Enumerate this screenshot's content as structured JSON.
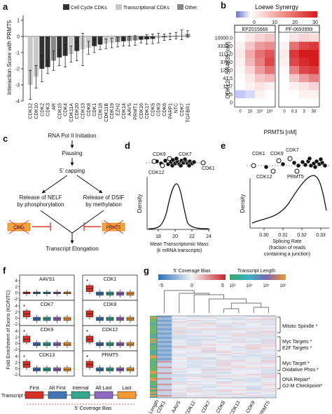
{
  "panel_labels": {
    "a": "a",
    "b": "b",
    "c": "c",
    "d": "d",
    "e": "e",
    "f": "f",
    "g": "g"
  },
  "panel_a": {
    "legend": [
      {
        "label": "Cell Cycle CDKs",
        "color": "#333333"
      },
      {
        "label": "Transcriptional CDKs",
        "color": "#c8c8c8"
      },
      {
        "label": "Other",
        "color": "#888888"
      }
    ],
    "ylabel": "Interaction Score with PRMT5",
    "yticks": [
      "1",
      "0",
      "-1",
      "-2",
      "-3",
      "-4"
    ]
  },
  "panel_b": {
    "title": "Loewe Synergy",
    "scale_ticks": [
      "0",
      "10",
      "20",
      "30"
    ],
    "ylabel": "CDK12i - SR4835 [nM]",
    "xlabel": "PRMT5i [nM]",
    "heatmaps": [
      {
        "title": "EPZ015666",
        "xticks": [
          "0",
          "10",
          "10²",
          "10³"
        ]
      },
      {
        "title": "PF-0693999",
        "xticks": [
          "0",
          "0.3",
          "3",
          "30"
        ]
      }
    ],
    "yticks": [
      "10000.0",
      "3333.0",
      "1111.0",
      "370.0",
      "123.0",
      "41.5",
      "13.7",
      "4.5",
      "0"
    ]
  },
  "panel_c": {
    "nodes": {
      "rnapol": "RNA Pol II Initiation",
      "pausing": "Pausing",
      "capping": "5' capping",
      "nelf_1": "Release of NELF",
      "nelf_2": "by phosphorylation",
      "dsif_1": "Release of DSIF",
      "dsif_2": "by methylation",
      "elong": "Transcript Elongation"
    },
    "badges": {
      "cdks": "CDKs",
      "prmt5": "PRMT5"
    }
  },
  "panel_d": {
    "labels": {
      "cdk9": "CDK9",
      "cdk7": "CDK7",
      "cdk12": "CDK12",
      "cdk1": "CDK1"
    },
    "ylabel": "Density",
    "xlabel_1": "Mean Transcriptomic Mass",
    "xlabel_2": "(k mRNA transcripts)",
    "xticks": [
      "18",
      "20",
      "22",
      "24"
    ]
  },
  "panel_e": {
    "labels": {
      "cdk1": "CDK1",
      "cdk9": "CDK9",
      "cdk7": "CDK7",
      "cdk12": "CDK12",
      "prmt5": "PRMT5"
    },
    "ylabel": "Density",
    "xlabel_1": "Splicing Rate",
    "xlabel_2": "(fraction of reads",
    "xlabel_3": "containing a junction)",
    "xticks": [
      "0.30",
      "0.31",
      "0.32",
      "0.33"
    ]
  },
  "panel_f": {
    "ylabel": "Fold Enrichment of Exons (KO/NTC)",
    "yticks": [
      "4",
      "2",
      "0",
      "-2"
    ],
    "star": "*",
    "genes": [
      "AAVS1",
      "CDK1",
      "CDK7",
      "CDK8",
      "CDK9",
      "CDK12",
      "CDK13",
      "PRMT5"
    ],
    "box_colors": [
      "#d73027",
      "#4575b4",
      "#35a78e",
      "#8e6bbf",
      "#f39a33"
    ],
    "transcript_label": "Transcript",
    "exon_labels": [
      "First",
      "Alt First",
      "Internal",
      "Alt Last",
      "Last"
    ],
    "bias_label": "5' Coverage Bias"
  },
  "panel_g": {
    "bias_title": "5' Coverage Bias",
    "bias_ticks": [
      "-5",
      "0",
      "5"
    ],
    "length_title": "Transcript Length",
    "length_ticks": [
      "10³",
      "10⁴",
      "10⁵",
      "10⁶"
    ],
    "length_label": "Length",
    "columns": [
      "CDK1",
      "AAVS",
      "CDK12",
      "CDK7",
      "CDK8",
      "CDK13",
      "CDK9",
      "PRMT5"
    ],
    "annotations": [
      {
        "text": "Mitotic Spindle *"
      },
      {
        "text": "Myc Targets *"
      },
      {
        "text": "E2F Targets *"
      },
      {
        "text": "Myc Target *"
      },
      {
        "text": "Oxidative Phos.*"
      },
      {
        "text": "DNA Repair*"
      },
      {
        "text": "G2-M Checkpoint*"
      }
    ]
  },
  "chart_data": [
    {
      "type": "bar",
      "panel": "a",
      "ylabel": "Interaction Score with PRMT5",
      "ylim": [
        -4,
        1.3
      ],
      "categories": [
        "CDK12",
        "CDK10",
        "CDK2",
        "CDK3",
        "AR",
        "CDK15",
        "CDK4",
        "CDK11A",
        "CDK20",
        "CDK13",
        "CDK8",
        "CDK1",
        "CDK18",
        "CDK11B",
        "CDK19",
        "EZH2",
        "CDK14",
        "AAVS",
        "PRMT1",
        "CDK16",
        "CDK17",
        "CDK5",
        "CDK9",
        "CDK6",
        "PARP1",
        "NTC",
        "CDK7",
        "TGFBR1"
      ],
      "values": [
        -3.0,
        -2.5,
        -2.0,
        -1.9,
        -1.5,
        -1.3,
        -1.2,
        -1.1,
        -0.9,
        -0.8,
        -0.7,
        -0.6,
        -0.5,
        -0.45,
        -0.4,
        -0.35,
        -0.3,
        -0.28,
        -0.25,
        -0.2,
        -0.18,
        -0.15,
        -0.1,
        -0.05,
        0.0,
        0.05,
        0.1,
        0.15
      ],
      "errors": [
        0.9,
        0.7,
        0.8,
        0.4,
        0.6,
        0.5,
        0.7,
        0.5,
        0.6,
        1.0,
        0.4,
        0.4,
        0.3,
        0.3,
        0.3,
        0.3,
        0.3,
        0.3,
        0.3,
        0.2,
        0.3,
        0.3,
        0.3,
        0.2,
        0.2,
        0.2,
        0.3,
        0.2
      ],
      "groups": [
        "transcriptional",
        "transcriptional",
        "cell-cycle",
        "cell-cycle",
        "other",
        "cell-cycle",
        "cell-cycle",
        "transcriptional",
        "cell-cycle",
        "transcriptional",
        "transcriptional",
        "cell-cycle",
        "cell-cycle",
        "transcriptional",
        "transcriptional",
        "other",
        "cell-cycle",
        "other",
        "other",
        "cell-cycle",
        "cell-cycle",
        "cell-cycle",
        "transcriptional",
        "cell-cycle",
        "other",
        "other",
        "transcriptional",
        "other"
      ]
    },
    {
      "type": "heatmap",
      "panel": "b",
      "title": "EPZ015666",
      "xlabel": "PRMT5i [nM]",
      "ylabel": "CDK12i - SR4835 [nM]",
      "x": [
        "0",
        "10",
        "10²",
        "10³"
      ],
      "y": [
        "10000.0",
        "3333.0",
        "1111.0",
        "370.0",
        "123.0",
        "41.5",
        "13.7",
        "4.5",
        "0"
      ],
      "values": [
        [
          0,
          3,
          6,
          8
        ],
        [
          2,
          8,
          14,
          16
        ],
        [
          3,
          12,
          20,
          24
        ],
        [
          2,
          10,
          18,
          26
        ],
        [
          1,
          6,
          14,
          20
        ],
        [
          0,
          3,
          8,
          10
        ],
        [
          0,
          2,
          4,
          2
        ],
        [
          -3,
          -2,
          2,
          0
        ],
        [
          0,
          0,
          0,
          0
        ]
      ]
    },
    {
      "type": "heatmap",
      "panel": "b",
      "title": "PF-0693999",
      "xlabel": "PRMT5i [nM]",
      "x": [
        "0",
        "0.3",
        "3",
        "30"
      ],
      "y": [
        "10000.0",
        "3333.0",
        "1111.0",
        "370.0",
        "123.0",
        "41.5",
        "13.7",
        "4.5",
        "0"
      ],
      "values": [
        [
          0,
          4,
          6,
          5
        ],
        [
          2,
          20,
          26,
          28
        ],
        [
          3,
          28,
          32,
          32
        ],
        [
          2,
          26,
          30,
          32
        ],
        [
          1,
          18,
          26,
          28
        ],
        [
          0,
          8,
          14,
          18
        ],
        [
          0,
          2,
          4,
          6
        ],
        [
          0,
          0,
          2,
          2
        ],
        [
          0,
          0,
          0,
          0
        ]
      ]
    }
  ]
}
